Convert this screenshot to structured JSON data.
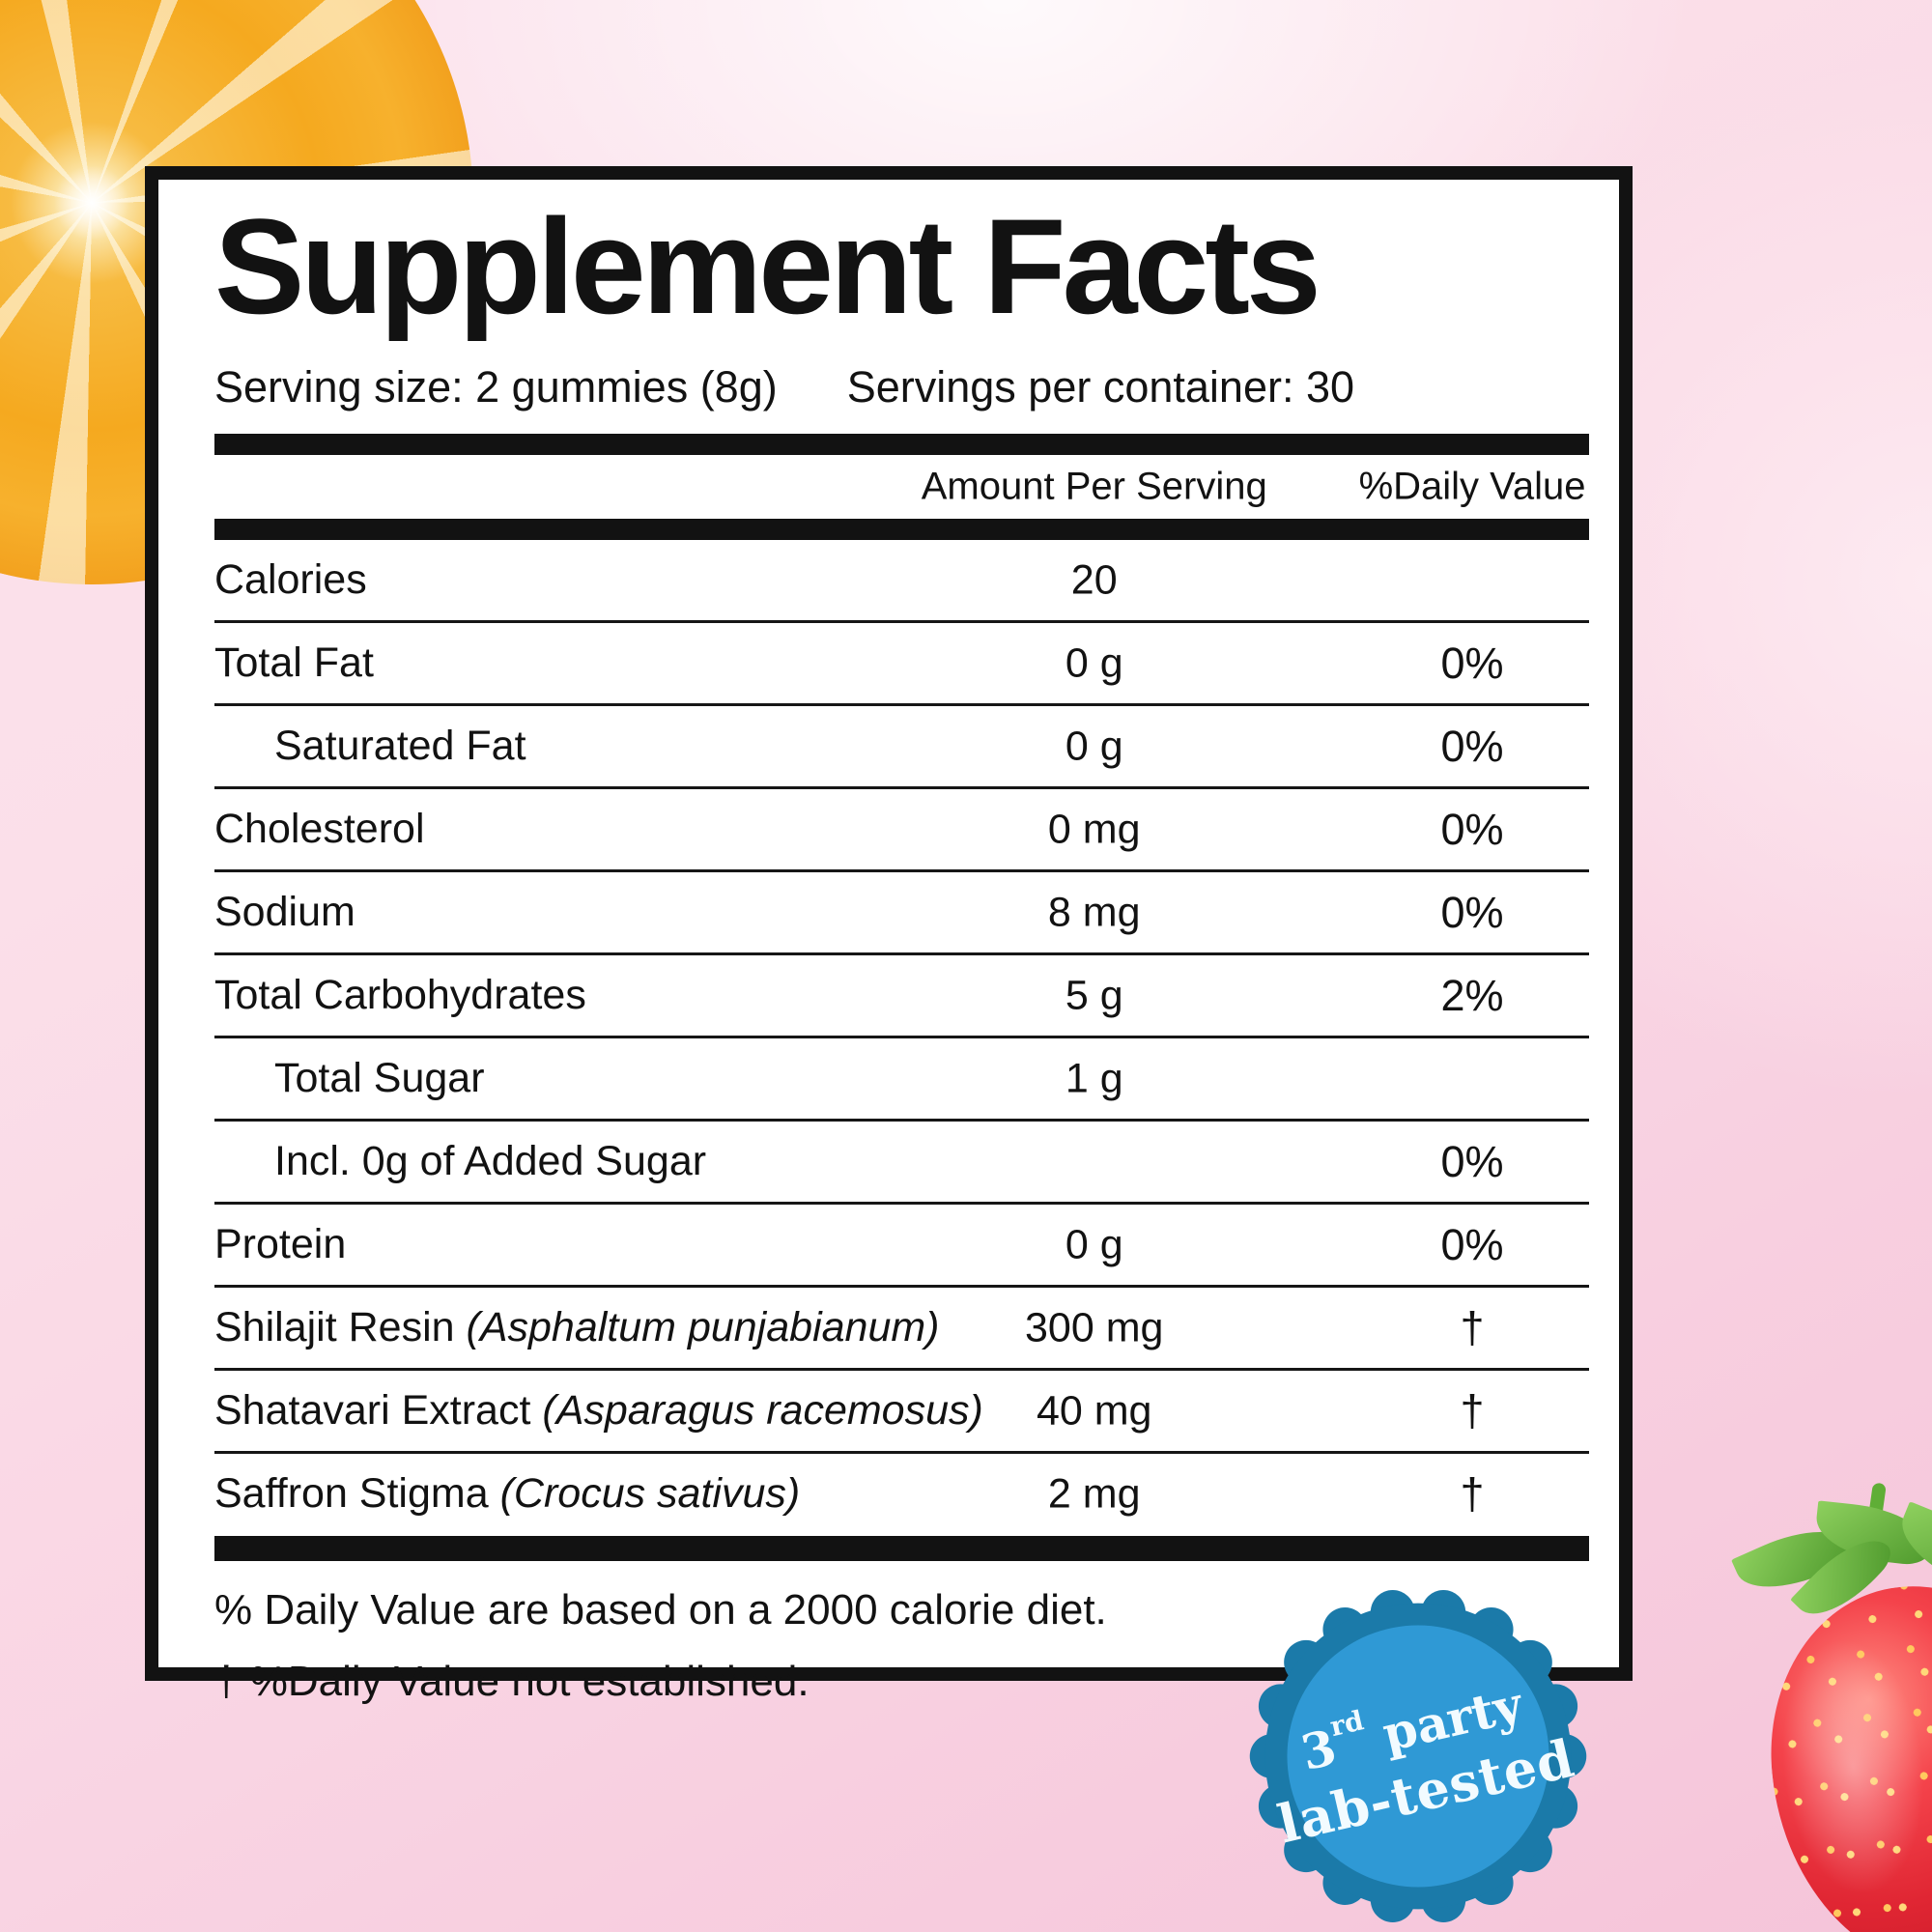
{
  "colors": {
    "ink": "#121212",
    "panel_bg": "#ffffff",
    "badge_outer": "#1b7aa9",
    "badge_inner": "#2f99d5",
    "badge_text": "#f2fbff",
    "orange_flesh": "#f5a91f",
    "orange_peel": "#f0981f",
    "strawberry_red": "#e02633",
    "leaf_green": "#4f9a2d"
  },
  "panel": {
    "title": "Supplement Facts",
    "serving_size": "Serving size: 2 gummies (8g)",
    "servings_per_container": "Servings per container: 30",
    "columns": {
      "amount": "Amount Per Serving",
      "daily_value": "%Daily Value"
    },
    "rows": [
      {
        "label": "Calories",
        "latin": "",
        "amount": "20",
        "dv": "",
        "indent": false
      },
      {
        "label": "Total Fat",
        "latin": "",
        "amount": "0 g",
        "dv": "0%",
        "indent": false
      },
      {
        "label": "Saturated Fat",
        "latin": "",
        "amount": "0 g",
        "dv": "0%",
        "indent": true
      },
      {
        "label": "Cholesterol",
        "latin": "",
        "amount": "0 mg",
        "dv": "0%",
        "indent": false
      },
      {
        "label": "Sodium",
        "latin": "",
        "amount": "8 mg",
        "dv": "0%",
        "indent": false
      },
      {
        "label": "Total Carbohydrates",
        "latin": "",
        "amount": "5 g",
        "dv": "2%",
        "indent": false
      },
      {
        "label": "Total Sugar",
        "latin": "",
        "amount": "1 g",
        "dv": "",
        "indent": true
      },
      {
        "label": "Incl. 0g of Added Sugar",
        "latin": "",
        "amount": "",
        "dv": "0%",
        "indent": true
      },
      {
        "label": "Protein",
        "latin": "",
        "amount": "0 g",
        "dv": "0%",
        "indent": false
      },
      {
        "label": "Shilajit Resin",
        "latin": "(Asphaltum punjabianum)",
        "amount": "300 mg",
        "dv": "†",
        "indent": false
      },
      {
        "label": "Shatavari Extract",
        "latin": "(Asparagus racemosus)",
        "amount": "40 mg",
        "dv": "†",
        "indent": false
      },
      {
        "label": "Saffron Stigma",
        "latin": "(Crocus sativus)",
        "amount": "2 mg",
        "dv": "†",
        "indent": false
      }
    ],
    "footnotes": [
      "% Daily Value are based on a 2000 calorie diet.",
      "† %Daily Value not established."
    ]
  },
  "badge": {
    "line1_number": "3",
    "line1_sup": "rd",
    "line1_rest": " party",
    "line2": "lab-tested"
  },
  "decorations": {
    "top_left": "orange-slice",
    "bottom_right": "strawberry"
  }
}
